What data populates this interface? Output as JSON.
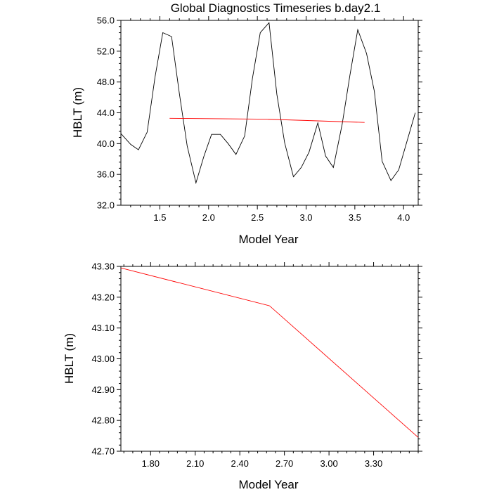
{
  "title": "Global Diagnostics Timeseries b.day2.1",
  "chart_data": [
    {
      "type": "line",
      "title": "Global Diagnostics Timeseries b.day2.1",
      "xlabel": "Model Year",
      "ylabel": "HBLT (m)",
      "xlim": [
        1.1,
        4.15
      ],
      "ylim": [
        32.0,
        56.0
      ],
      "x_ticks": [
        1.5,
        2.0,
        2.5,
        3.0,
        3.5,
        4.0
      ],
      "x_tick_labels": [
        "1.5",
        "2.0",
        "2.5",
        "3.0",
        "3.5",
        "4.0"
      ],
      "y_ticks": [
        32,
        36,
        40,
        44,
        48,
        52,
        56
      ],
      "y_tick_labels": [
        "32.0",
        "36.0",
        "40.0",
        "44.0",
        "48.0",
        "52.0",
        "56.0"
      ],
      "grid": false,
      "series": [
        {
          "color": "#000000",
          "x": [
            1.1,
            1.2,
            1.28,
            1.37,
            1.45,
            1.53,
            1.62,
            1.7,
            1.78,
            1.87,
            1.95,
            2.03,
            2.12,
            2.2,
            2.28,
            2.37,
            2.45,
            2.53,
            2.62,
            2.7,
            2.78,
            2.87,
            2.95,
            3.03,
            3.12,
            3.2,
            3.28,
            3.37,
            3.45,
            3.53,
            3.62,
            3.7,
            3.78,
            3.87,
            3.95,
            4.03,
            4.12
          ],
          "values": [
            41.3,
            39.9,
            39.2,
            41.5,
            48.6,
            54.4,
            53.9,
            46.5,
            39.7,
            34.9,
            38.3,
            41.2,
            41.2,
            40.0,
            38.6,
            41.0,
            48.5,
            54.4,
            55.7,
            46.4,
            40.1,
            35.7,
            36.9,
            38.9,
            42.7,
            38.4,
            36.9,
            42.5,
            48.9,
            54.8,
            51.7,
            46.8,
            37.7,
            35.2,
            36.6,
            40.1,
            44.0
          ]
        },
        {
          "color": "#ff0000",
          "x": [
            1.6,
            2.6,
            3.6
          ],
          "values": [
            43.29,
            43.17,
            42.75
          ]
        }
      ]
    },
    {
      "type": "line",
      "xlabel": "Model Year",
      "ylabel": "HBLT (m)",
      "xlim": [
        1.6,
        3.6
      ],
      "ylim": [
        42.7,
        43.3
      ],
      "x_ticks": [
        1.8,
        2.1,
        2.4,
        2.7,
        3.0,
        3.3
      ],
      "x_tick_labels": [
        "1.80",
        "2.10",
        "2.40",
        "2.70",
        "3.00",
        "3.30"
      ],
      "y_ticks": [
        42.7,
        42.8,
        42.9,
        43.0,
        43.1,
        43.2,
        43.3
      ],
      "y_tick_labels": [
        "42.70",
        "42.80",
        "42.90",
        "43.00",
        "43.10",
        "43.20",
        "43.30"
      ],
      "grid": false,
      "series": [
        {
          "color": "#ff0000",
          "x": [
            1.6,
            2.6,
            3.6
          ],
          "values": [
            43.295,
            43.172,
            42.745
          ]
        }
      ]
    }
  ]
}
